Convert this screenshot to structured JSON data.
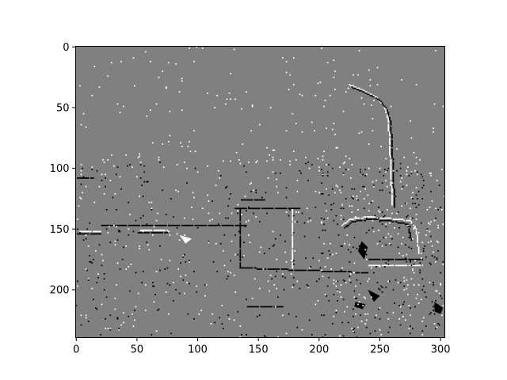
{
  "chart_data": {
    "type": "heatmap",
    "title": "",
    "xlabel": "",
    "ylabel": "",
    "xlim": [
      -0.5,
      303.5
    ],
    "ylim": [
      239.5,
      -0.5
    ],
    "y_axis_inverted": true,
    "grid": false,
    "legend": "none",
    "colormap": "gray",
    "value_levels": [
      -1,
      0,
      1
    ],
    "colors": {
      "background": "#808080",
      "negative": "#000000",
      "positive": "#ffffff"
    },
    "x_ticks": [
      0,
      50,
      100,
      150,
      200,
      250,
      300
    ],
    "y_ticks": [
      0,
      50,
      100,
      150,
      200
    ],
    "x_tick_labels": [
      "0",
      "50",
      "100",
      "150",
      "200",
      "250",
      "300"
    ],
    "y_tick_labels": [
      "0",
      "50",
      "100",
      "150",
      "200"
    ],
    "description_features": [
      {
        "kind": "line",
        "value": 1,
        "points": [
          [
            224,
            31
          ],
          [
            235,
            35
          ],
          [
            248,
            42
          ],
          [
            254,
            50
          ],
          [
            257,
            60
          ],
          [
            258,
            80
          ],
          [
            259,
            100
          ],
          [
            260,
            130
          ]
        ]
      },
      {
        "kind": "line",
        "value": -1,
        "points": [
          [
            226,
            33
          ],
          [
            237,
            37
          ],
          [
            250,
            44
          ],
          [
            256,
            52
          ],
          [
            259,
            62
          ],
          [
            260,
            82
          ],
          [
            261,
            102
          ],
          [
            262,
            132
          ]
        ]
      },
      {
        "kind": "line",
        "value": -1,
        "points": [
          [
            0,
            108
          ],
          [
            14,
            108
          ]
        ]
      },
      {
        "kind": "line",
        "value": -1,
        "points": [
          [
            135,
            126
          ],
          [
            155,
            126
          ]
        ]
      },
      {
        "kind": "line",
        "value": -1,
        "points": [
          [
            130,
            133
          ],
          [
            185,
            133
          ]
        ]
      },
      {
        "kind": "line",
        "value": -1,
        "points": [
          [
            135,
            133
          ],
          [
            135,
            182
          ]
        ]
      },
      {
        "kind": "line",
        "value": 1,
        "points": [
          [
            178,
            133
          ],
          [
            178,
            182
          ]
        ]
      },
      {
        "kind": "line",
        "value": -1,
        "points": [
          [
            135,
            182
          ],
          [
            240,
            186
          ]
        ]
      },
      {
        "kind": "line",
        "value": -1,
        "points": [
          [
            140,
            214
          ],
          [
            170,
            214
          ]
        ]
      },
      {
        "kind": "line",
        "value": -1,
        "points": [
          [
            0,
            154
          ],
          [
            20,
            154
          ]
        ]
      },
      {
        "kind": "line",
        "value": 1,
        "points": [
          [
            2,
            152
          ],
          [
            20,
            152
          ]
        ]
      },
      {
        "kind": "line",
        "value": -1,
        "points": [
          [
            50,
            153
          ],
          [
            75,
            153
          ]
        ]
      },
      {
        "kind": "line",
        "value": 1,
        "points": [
          [
            52,
            151
          ],
          [
            75,
            151
          ]
        ]
      },
      {
        "kind": "line",
        "value": -1,
        "points": [
          [
            20,
            147
          ],
          [
            140,
            147
          ]
        ]
      },
      {
        "kind": "line",
        "value": 1,
        "points": [
          [
            218,
            148
          ],
          [
            225,
            142
          ],
          [
            240,
            140
          ],
          [
            255,
            141
          ],
          [
            275,
            143
          ],
          [
            280,
            150
          ],
          [
            282,
            170
          ]
        ]
      },
      {
        "kind": "line",
        "value": -1,
        "points": [
          [
            220,
            150
          ],
          [
            227,
            144
          ],
          [
            242,
            142
          ],
          [
            257,
            143
          ],
          [
            273,
            146
          ],
          [
            276,
            160
          ]
        ]
      },
      {
        "kind": "line",
        "value": -1,
        "points": [
          [
            240,
            175
          ],
          [
            285,
            175
          ]
        ]
      },
      {
        "kind": "line",
        "value": 1,
        "points": [
          [
            240,
            180
          ],
          [
            285,
            180
          ]
        ]
      },
      {
        "kind": "blob",
        "value": -1,
        "points": [
          [
            235,
            160
          ],
          [
            240,
            165
          ],
          [
            237,
            175
          ],
          [
            232,
            168
          ]
        ]
      },
      {
        "kind": "blob",
        "value": -1,
        "points": [
          [
            230,
            210
          ],
          [
            238,
            212
          ],
          [
            236,
            216
          ],
          [
            229,
            214
          ]
        ]
      },
      {
        "kind": "blob",
        "value": -1,
        "points": [
          [
            295,
            210
          ],
          [
            302,
            215
          ],
          [
            300,
            220
          ],
          [
            295,
            218
          ]
        ]
      },
      {
        "kind": "blob",
        "value": 1,
        "points": [
          [
            85,
            155
          ],
          [
            95,
            158
          ],
          [
            90,
            162
          ]
        ]
      },
      {
        "kind": "blob",
        "value": -1,
        "points": [
          [
            240,
            200
          ],
          [
            250,
            205
          ],
          [
            245,
            210
          ]
        ]
      }
    ],
    "sparse_noise": [
      {
        "value": 1,
        "count": 160,
        "x": [
          0,
          303
        ],
        "y": [
          0,
          100
        ]
      },
      {
        "value": 1,
        "count": 260,
        "x": [
          0,
          303
        ],
        "y": [
          90,
          200
        ]
      },
      {
        "value": -1,
        "count": 260,
        "x": [
          0,
          303
        ],
        "y": [
          95,
          200
        ]
      },
      {
        "value": 1,
        "count": 120,
        "x": [
          200,
          303
        ],
        "y": [
          100,
          239
        ]
      },
      {
        "value": -1,
        "count": 150,
        "x": [
          200,
          303
        ],
        "y": [
          100,
          239
        ]
      },
      {
        "value": 1,
        "count": 80,
        "x": [
          0,
          303
        ],
        "y": [
          190,
          239
        ]
      },
      {
        "value": -1,
        "count": 80,
        "x": [
          0,
          303
        ],
        "y": [
          190,
          239
        ]
      }
    ]
  }
}
